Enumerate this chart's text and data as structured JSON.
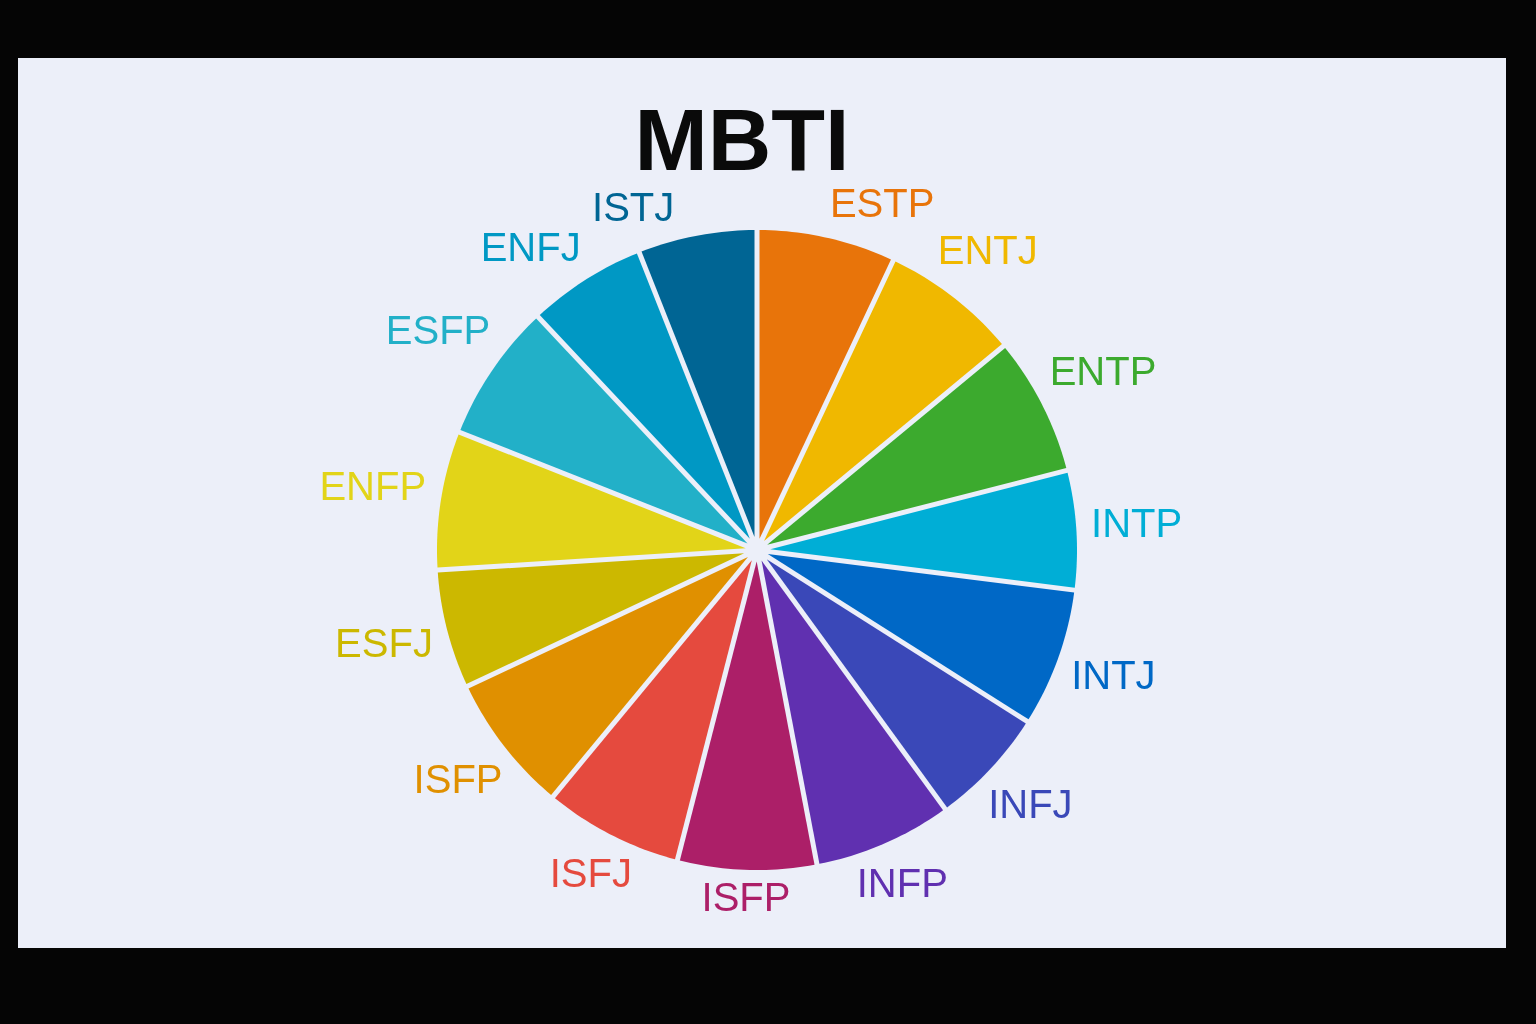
{
  "chart_data": {
    "type": "pie",
    "title": "MBTI",
    "categories": [
      "ESTP",
      "ENTJ",
      "ENTP",
      "INTP",
      "INTJ",
      "INFJ",
      "INFP",
      "ISFP",
      "ISFJ",
      "ISFP",
      "ESFJ",
      "ENFP",
      "ESFP",
      "ENFJ",
      "ISTJ"
    ],
    "values": [
      7,
      7,
      7,
      6,
      7,
      6,
      7,
      7,
      7,
      7,
      6,
      7,
      7,
      6,
      6
    ],
    "colors": [
      "#e8740a",
      "#f0b800",
      "#3caa2e",
      "#00aed6",
      "#0068c6",
      "#3a48b8",
      "#6030b0",
      "#ac1f68",
      "#e54a3e",
      "#e09000",
      "#ccb800",
      "#e2d418",
      "#22b0c8",
      "#0098c4",
      "#006594"
    ]
  }
}
